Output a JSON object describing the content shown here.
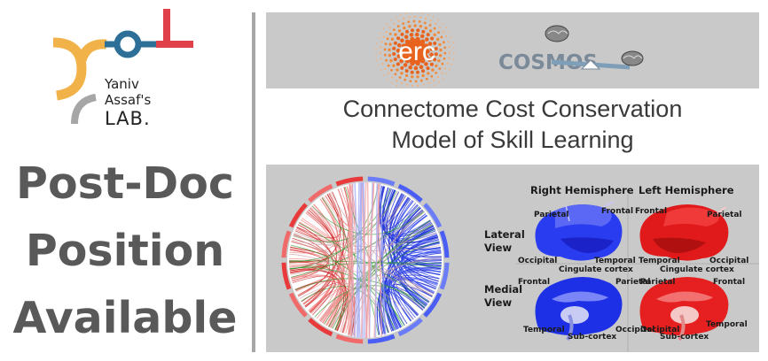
{
  "lab": {
    "name_line1": "Yaniv",
    "name_line2": "Assaf's",
    "name_line3": "LAB.",
    "colors": {
      "orange": "#f2b24a",
      "blue": "#2e6f97",
      "red": "#e0404a",
      "gray": "#a6a6a6"
    }
  },
  "headline": {
    "line1": "Post-Doc",
    "line2": "Position",
    "line3": "Available"
  },
  "sponsors": {
    "erc_label": "erc",
    "cosmos_label": "COSMOS"
  },
  "project_title": {
    "line1": "Connectome Cost Conservation",
    "line2": "Model of Skill Learning"
  },
  "figure": {
    "right_hemisphere": "Right Hemisphere",
    "left_hemisphere": "Left Hemisphere",
    "lateral_view": [
      "Lateral",
      "View"
    ],
    "medial_view": [
      "Medial",
      "View"
    ],
    "lobes": {
      "parietal": "Parietal",
      "frontal": "Frontal",
      "occipital": "Occipital",
      "temporal": "Temporal",
      "cingulate": "Cingulate cortex",
      "subcortex": "Sub-cortex"
    },
    "colors": {
      "blue": "#1f35e8",
      "red": "#e01a1a",
      "panel": "#c9c9c9"
    }
  }
}
